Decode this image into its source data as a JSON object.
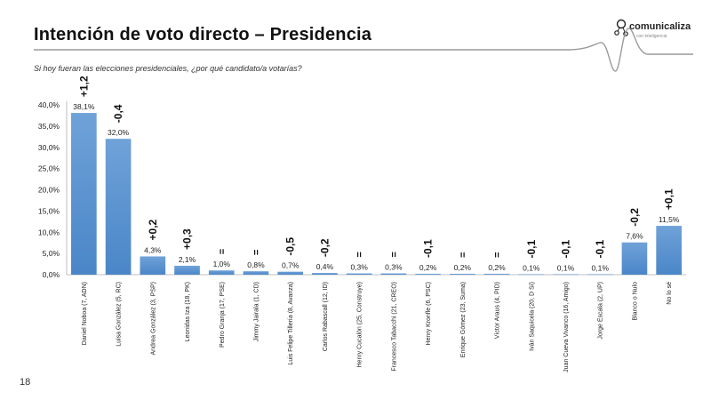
{
  "slide": {
    "title": "Intención de voto directo – Presidencia",
    "subtitle": "Si hoy fueran las elecciones presidenciales, ¿por qué candidato/a votarías?",
    "page_number": "18",
    "logo_text": "comunicaliza",
    "logo_tagline": "con inteligencia"
  },
  "colors": {
    "bar": "#4a86c8",
    "bar_top": "#6fa2d8",
    "axis": "#bfbfbf",
    "deco_line": "#9a9a9a"
  },
  "chart_data": {
    "type": "bar",
    "categories": [
      "Daniel Noboa (7, ADN)",
      "Luisa González (5, RC)",
      "Andrea González (3, PSP)",
      "Leonidas Iza (18, PK)",
      "Pedro Granja (17, PSE)",
      "Jimmy Jairala (1, CD)",
      "Luis Felipe Tillería (8, Avanza)",
      "Carlos Rabascall (12, ID)",
      "Henry Cucalón (25, Construye)",
      "Francesco Tabacchi (21, CREO)",
      "Henry Kronfle (6, PSC)",
      "Enrique Gómez (23, Suma)",
      "Víctor Araus (4, PID)",
      "Iván Saquicela (20, D Sí)",
      "Juan Cueva Vivanco (16, Amigo)",
      "Jorge Escala (2, UP)",
      "Blanco o Nulo",
      "No lo sé"
    ],
    "values": [
      38.1,
      32.0,
      4.3,
      2.1,
      1.0,
      0.8,
      0.7,
      0.4,
      0.3,
      0.3,
      0.2,
      0.2,
      0.2,
      0.1,
      0.1,
      0.1,
      7.6,
      11.5
    ],
    "value_labels": [
      "38,1%",
      "32,0%",
      "4,3%",
      "2,1%",
      "1,0%",
      "0,8%",
      "0,7%",
      "0,4%",
      "0,3%",
      "0,3%",
      "0,2%",
      "0,2%",
      "0,2%",
      "0,1%",
      "0,1%",
      "0,1%",
      "7,6%",
      "11,5%"
    ],
    "changes": [
      "+1,2",
      "-0,4",
      "+0,2",
      "+0,3",
      "=",
      "=",
      "-0,5",
      "-0,2",
      "=",
      "=",
      "-0,1",
      "=",
      "=",
      "-0,1",
      "-0,1",
      "-0,1",
      "-0,2",
      "+0,1"
    ],
    "ylim": [
      0,
      40
    ],
    "yticks": [
      "0,0%",
      "5,0%",
      "10,0%",
      "15,0%",
      "20,0%",
      "25,0%",
      "30,0%",
      "35,0%",
      "40,0%"
    ],
    "xlabel": "",
    "ylabel": "",
    "grid": false,
    "legend": "none"
  }
}
